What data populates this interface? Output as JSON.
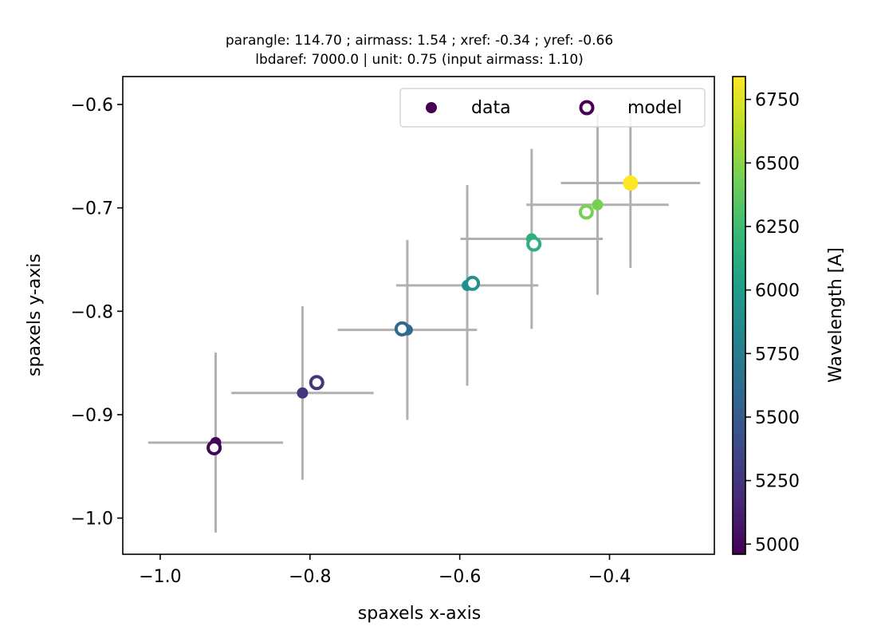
{
  "chart_data": {
    "type": "scatter",
    "title_lines": [
      "parangle: 114.70 ; airmass: 1.54 ; xref: -0.34 ; yref: -0.66",
      "lbdaref: 7000.0 | unit: 0.75 (input airmass: 1.10)"
    ],
    "xlabel": "spaxels x-axis",
    "ylabel": "spaxels y-axis",
    "xlim": [
      -1.05,
      -0.26
    ],
    "ylim": [
      -1.035,
      -0.573
    ],
    "xticks": [
      -1.0,
      -0.8,
      -0.6,
      -0.4
    ],
    "xtick_labels": [
      "−1.0",
      "−0.8",
      "−0.6",
      "−0.4"
    ],
    "yticks": [
      -0.6,
      -0.7,
      -0.8,
      -0.9,
      -1.0
    ],
    "ytick_labels": [
      "−0.6",
      "−0.7",
      "−0.8",
      "−0.9",
      "−1.0"
    ],
    "grid": false,
    "legend": {
      "placement": "top-right",
      "entries": [
        "data",
        "model"
      ]
    },
    "colorbar": {
      "label": "Wavelength [A]",
      "range": [
        4960,
        6840
      ],
      "ticks": [
        5000,
        5250,
        5500,
        5750,
        6000,
        6250,
        6500,
        6750
      ],
      "colormap": [
        "#440154",
        "#482878",
        "#3e4989",
        "#31688e",
        "#26828e",
        "#1f9e89",
        "#35b779",
        "#6ece58",
        "#b5de2b",
        "#fde725"
      ]
    },
    "errorbar_color": "#b0b0b0",
    "series": [
      {
        "name": "data",
        "marker": "filled-circle",
        "points": [
          {
            "x": -0.926,
            "y": -0.927,
            "xerr": 0.09,
            "yerr": 0.087,
            "wavelength": 4980
          },
          {
            "x": -0.81,
            "y": -0.879,
            "xerr": 0.095,
            "yerr": 0.084,
            "wavelength": 5250
          },
          {
            "x": -0.67,
            "y": -0.818,
            "xerr": 0.093,
            "yerr": 0.087,
            "wavelength": 5600
          },
          {
            "x": -0.59,
            "y": -0.775,
            "xerr": 0.095,
            "yerr": 0.097,
            "wavelength": 5900
          },
          {
            "x": -0.504,
            "y": -0.73,
            "xerr": 0.095,
            "yerr": 0.087,
            "wavelength": 6150
          },
          {
            "x": -0.416,
            "y": -0.697,
            "xerr": 0.095,
            "yerr": 0.087,
            "wavelength": 6450
          },
          {
            "x": -0.372,
            "y": -0.676,
            "xerr": 0.093,
            "yerr": 0.082,
            "wavelength": 6840
          }
        ]
      },
      {
        "name": "model",
        "marker": "open-circle",
        "points": [
          {
            "x": -0.928,
            "y": -0.932,
            "wavelength": 4980
          },
          {
            "x": -0.791,
            "y": -0.869,
            "wavelength": 5250
          },
          {
            "x": -0.677,
            "y": -0.817,
            "wavelength": 5600
          },
          {
            "x": -0.583,
            "y": -0.773,
            "wavelength": 5900
          },
          {
            "x": -0.501,
            "y": -0.735,
            "wavelength": 6150
          },
          {
            "x": -0.431,
            "y": -0.704,
            "wavelength": 6450
          }
        ]
      }
    ]
  }
}
